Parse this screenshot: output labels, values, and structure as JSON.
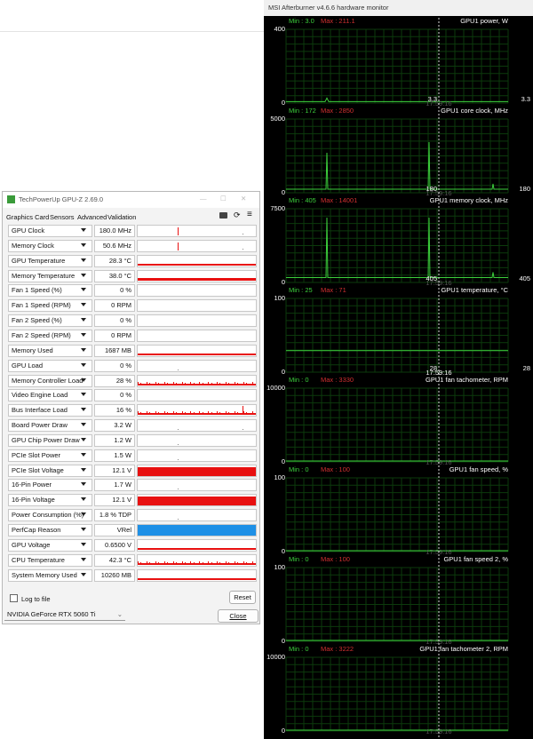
{
  "gpuz": {
    "title": "TechPowerUp GPU-Z 2.69.0",
    "tabs": [
      "Graphics Card",
      "Sensors",
      "Advanced",
      "Validation"
    ],
    "sensors": [
      {
        "name": "GPU Clock",
        "value": "180.0 MHz"
      },
      {
        "name": "Memory Clock",
        "value": "50.6 MHz"
      },
      {
        "name": "GPU Temperature",
        "value": "28.3 °C"
      },
      {
        "name": "Memory Temperature",
        "value": "38.0 °C"
      },
      {
        "name": "Fan 1 Speed (%)",
        "value": "0 %"
      },
      {
        "name": "Fan 1 Speed (RPM)",
        "value": "0 RPM"
      },
      {
        "name": "Fan 2 Speed (%)",
        "value": "0 %"
      },
      {
        "name": "Fan 2 Speed (RPM)",
        "value": "0 RPM"
      },
      {
        "name": "Memory Used",
        "value": "1687 MB"
      },
      {
        "name": "GPU Load",
        "value": "0 %"
      },
      {
        "name": "Memory Controller Load",
        "value": "28 %"
      },
      {
        "name": "Video Engine Load",
        "value": "0 %"
      },
      {
        "name": "Bus Interface Load",
        "value": "16 %"
      },
      {
        "name": "Board Power Draw",
        "value": "3.2 W"
      },
      {
        "name": "GPU Chip Power Draw",
        "value": "1.2 W"
      },
      {
        "name": "PCIe Slot Power",
        "value": "1.5 W"
      },
      {
        "name": "PCIe Slot Voltage",
        "value": "12.1 V"
      },
      {
        "name": "16-Pin Power",
        "value": "1.7 W"
      },
      {
        "name": "16-Pin Voltage",
        "value": "12.1 V"
      },
      {
        "name": "Power Consumption (%)",
        "value": "1.8 % TDP"
      },
      {
        "name": "PerfCap Reason",
        "value": "VRel"
      },
      {
        "name": "GPU Voltage",
        "value": "0.6500 V"
      },
      {
        "name": "CPU Temperature",
        "value": "42.3 °C"
      },
      {
        "name": "System Memory Used",
        "value": "10260 MB"
      }
    ],
    "log_to_file": "Log to file",
    "reset": "Reset",
    "gpu": "NVIDIA GeForce RTX 5060 Ti",
    "close": "Close"
  },
  "afterburner": {
    "title": "MSI Afterburner v4.6.6 hardware monitor",
    "panels": [
      {
        "min": "Min : 3.0",
        "max": "Max : 211.1",
        "name": "GPU1 power, W",
        "top": "400",
        "bottom": "0",
        "cursor_value": "3.3",
        "current": "3.3",
        "time": "17:59:16"
      },
      {
        "min": "Min : 172",
        "max": "Max : 2850",
        "name": "GPU1 core clock, MHz",
        "top": "5000",
        "bottom": "0",
        "cursor_value": "180",
        "current": "180",
        "time": "17:59:16"
      },
      {
        "min": "Min : 405",
        "max": "Max : 14001",
        "name": "GPU1 memory clock, MHz",
        "top": "7500",
        "bottom": "0",
        "cursor_value": "405",
        "current": "405",
        "time": "17:59:16"
      },
      {
        "min": "Min : 25",
        "max": "Max : 71",
        "name": "GPU1 temperature, °C",
        "top": "100",
        "bottom": "0",
        "cursor_value": "28",
        "current": "28",
        "time": "17:59:16"
      },
      {
        "min": "Min : 0",
        "max": "Max : 3330",
        "name": "GPU1 fan tachometer, RPM",
        "top": "10000",
        "bottom": "0",
        "time": "17:59:16"
      },
      {
        "min": "Min : 0",
        "max": "Max : 100",
        "name": "GPU1 fan speed, %",
        "top": "100",
        "bottom": "0",
        "time": "17:59:16"
      },
      {
        "min": "Min : 0",
        "max": "Max : 100",
        "name": "GPU1 fan speed 2, %",
        "top": "100",
        "bottom": "0",
        "time": "17:59:16"
      },
      {
        "min": "Min : 0",
        "max": "Max : 3222",
        "name": "GPU1 fan tachometer 2, RPM",
        "top": "10000",
        "bottom": "0",
        "time": "17:59:16"
      }
    ]
  }
}
